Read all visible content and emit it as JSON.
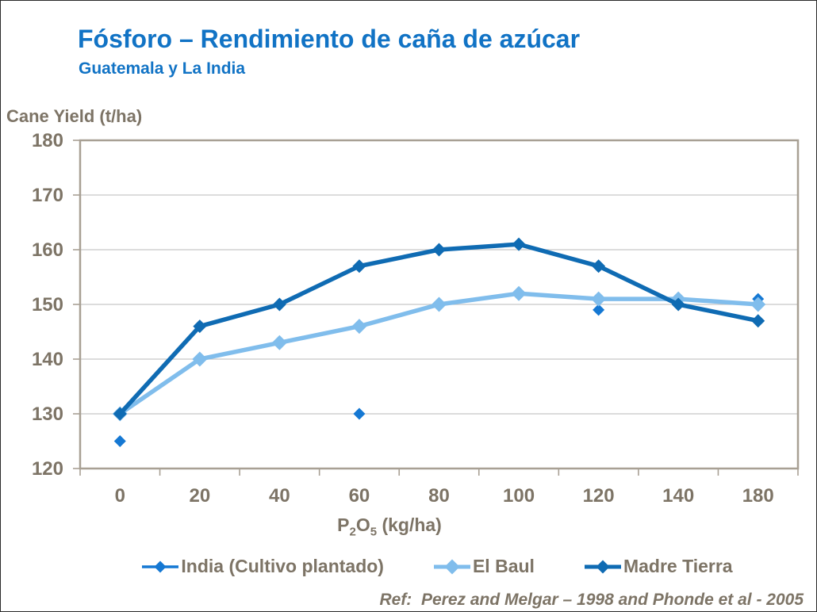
{
  "header": {
    "title": "Fósforo – Rendimiento de caña de azúcar",
    "subtitle": "Guatemala y La India"
  },
  "x_axis_title": {
    "pre": "P",
    "sub1": "2",
    "mid": "O",
    "sub2": "5",
    "post": " (kg/ha)"
  },
  "footer": {
    "ref": "Ref:  Perez and Melgar – 1998 and Phonde et al - 2005"
  },
  "colors": {
    "title_blue": "#1173C5",
    "axis_text": "#7D7466",
    "gridline": "#C7C7C7",
    "frame": "#A8A094",
    "background": "#FFFFFF"
  },
  "chart_data": {
    "type": "line",
    "title": "Fósforo – Rendimiento de caña de azúcar",
    "subtitle": "Guatemala y La India",
    "xlabel": "P₂O₅ (kg/ha)",
    "ylabel": "Cane Yield (t/ha)",
    "categories": [
      "0",
      "20",
      "40",
      "60",
      "80",
      "100",
      "120",
      "140",
      "180"
    ],
    "ylim": [
      120,
      180
    ],
    "y_ticks": [
      120,
      130,
      140,
      150,
      160,
      170,
      180
    ],
    "grid": true,
    "legend_position": "bottom",
    "series": [
      {
        "name": "India (Cultivo plantado)",
        "color": "#1578D3",
        "style": "markers-only",
        "marker": "diamond",
        "marker_size": 7.5,
        "points": [
          {
            "x": "0",
            "y": 125
          },
          {
            "x": "60",
            "y": 130
          },
          {
            "x": "120",
            "y": 149
          },
          {
            "x": "180",
            "y": 151
          }
        ]
      },
      {
        "name": "El Baul",
        "color": "#80BDEC",
        "style": "line-markers",
        "marker": "diamond",
        "marker_size": 9.5,
        "values": [
          130,
          140,
          143,
          146,
          150,
          152,
          151,
          151,
          150
        ]
      },
      {
        "name": "Madre Tierra",
        "color": "#0F6BB3",
        "style": "line-markers",
        "marker": "diamond",
        "marker_size": 8.5,
        "values": [
          130,
          146,
          150,
          157,
          160,
          161,
          157,
          150,
          147
        ]
      }
    ]
  }
}
